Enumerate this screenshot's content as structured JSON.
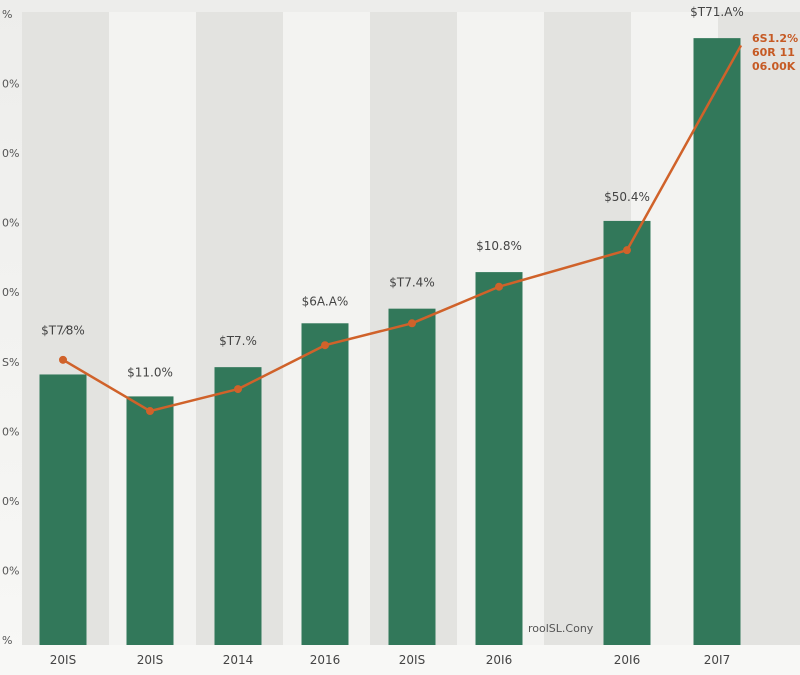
{
  "chart_data": {
    "type": "bar",
    "categories": [
      "20IS",
      "20IS",
      "2014",
      "2016",
      "20IS",
      "20I6",
      "20I6",
      "20I7"
    ],
    "series": [
      {
        "type": "bar",
        "values": [
          37,
          34,
          38,
          44,
          46,
          51,
          58,
          83
        ],
        "data_labels": [
          "$T7⁄8%",
          "$11.0%",
          "$T7.%",
          "$6A.A%",
          "$T7.4%",
          "$10.8%",
          "$50.4%",
          "$T71.A%"
        ],
        "color": "#32785a"
      },
      {
        "type": "line",
        "values": [
          39,
          32,
          35,
          41,
          44,
          49,
          54,
          82
        ],
        "color": "#d0622a"
      }
    ],
    "line_end_labels": [
      "6S1.2%",
      "60R 11",
      "06.00K"
    ],
    "ytick_labels": [
      "%",
      "0%",
      "0%",
      "0%",
      "0%",
      "S%",
      "0%",
      "0%",
      "0%",
      "%"
    ],
    "ylim": [
      0,
      90
    ],
    "grid": false,
    "watermark": "roolSL.Cony"
  }
}
